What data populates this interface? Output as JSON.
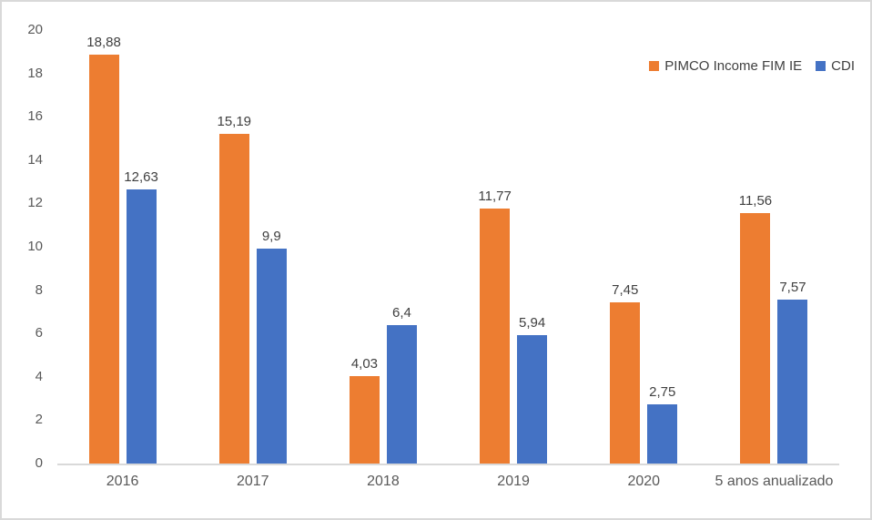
{
  "chart_data": {
    "type": "bar",
    "title": "",
    "xlabel": "",
    "ylabel": "",
    "categories": [
      "2016",
      "2017",
      "2018",
      "2019",
      "2020",
      "5 anos anualizado"
    ],
    "series": [
      {
        "name": "PIMCO Income FIM IE",
        "color": "#ED7D31",
        "values": [
          18.88,
          15.19,
          4.03,
          11.77,
          7.45,
          11.56
        ],
        "labels": [
          "18,88",
          "15,19",
          "4,03",
          "11,77",
          "7,45",
          "11,56"
        ]
      },
      {
        "name": "CDI",
        "color": "#4472C4",
        "values": [
          12.63,
          9.9,
          6.4,
          5.94,
          2.75,
          7.57
        ],
        "labels": [
          "12,63",
          "9,9",
          "6,4",
          "5,94",
          "2,75",
          "7,57"
        ]
      }
    ],
    "ylim": [
      0,
      20
    ],
    "yticks": [
      0,
      2,
      4,
      6,
      8,
      10,
      12,
      14,
      16,
      18,
      20
    ],
    "grid": false,
    "legend_position": "top-right",
    "decimal_separator": ",",
    "axis_line_color": "#D9D9D9",
    "axis_text_color": "#595959",
    "label_text_color": "#404040"
  }
}
